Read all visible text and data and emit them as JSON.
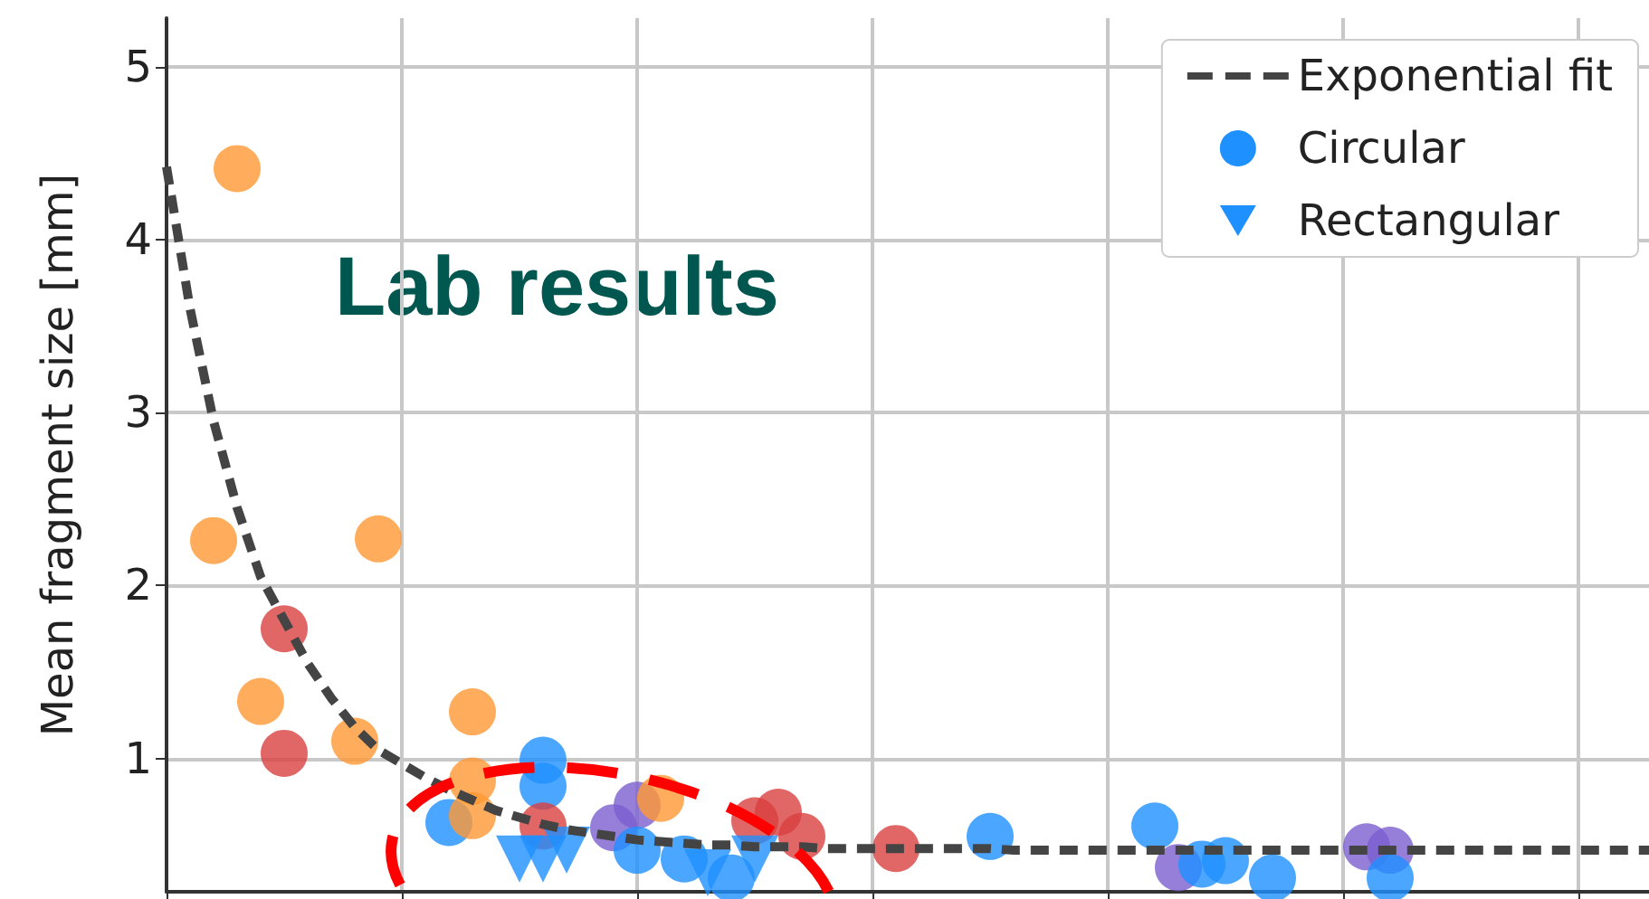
{
  "chart_data": {
    "type": "scatter",
    "ylabel": "Mean fragment size [mm]",
    "annotations": [
      "Lab results"
    ],
    "categories": [
      null,
      null,
      null,
      null,
      null,
      null,
      null,
      null,
      null,
      null,
      null,
      null,
      null,
      null,
      null,
      null,
      null,
      null,
      null,
      null,
      null,
      null,
      null,
      null,
      null,
      null,
      null,
      null,
      null,
      null,
      null,
      null,
      null,
      null,
      null,
      null,
      null,
      null,
      null,
      null,
      null,
      null,
      null,
      null,
      null,
      null,
      null,
      null,
      null,
      null,
      null,
      null,
      null,
      null,
      null,
      null,
      null,
      null,
      null,
      null,
      null,
      null,
      null,
      null
    ],
    "ylim": [
      0.23,
      5.28
    ],
    "yticks": [
      1,
      2,
      3,
      4,
      5
    ],
    "tick_labels": "y",
    "grid": true,
    "legend": "top right",
    "series": [
      {
        "name": "Exponential fit",
        "type": "line",
        "line_style": "dashed",
        "marker": "none",
        "color": "#444444",
        "values": [
          4.42,
          3.6,
          2.95,
          2.45,
          2.05,
          1.8,
          1.55,
          1.35,
          1.18,
          1.05,
          0.97,
          0.89,
          0.82,
          0.76,
          0.7,
          0.66,
          0.62,
          0.59,
          0.57,
          0.55,
          0.53,
          0.52,
          0.51,
          0.5,
          0.5,
          0.49,
          0.49,
          0.49,
          0.48,
          0.48,
          0.48,
          0.48,
          0.48,
          0.48,
          0.48,
          0.48,
          0.47,
          0.47,
          0.47,
          0.47,
          0.47,
          0.47,
          0.47,
          0.47,
          0.47,
          0.47,
          0.47,
          0.47,
          0.47,
          0.47,
          0.47,
          0.47,
          0.47,
          0.47,
          0.47,
          0.47,
          0.47,
          0.47,
          0.47,
          0.47,
          0.47,
          0.47,
          0.47,
          0.47
        ]
      },
      {
        "name": "Circular",
        "marker": "circle",
        "values": [
          null,
          null,
          2.26,
          4.41,
          1.33,
          1.75,
          null,
          null,
          1.1,
          2.27,
          null,
          null,
          0.63,
          1.27,
          null,
          null,
          0.99,
          null,
          null,
          0.6,
          0.73,
          0.77,
          0.42,
          null,
          0.31,
          0.64,
          0.69,
          0.55,
          null,
          null,
          null,
          0.48,
          null,
          null,
          null,
          0.55,
          null,
          null,
          null,
          null,
          null,
          null,
          0.61,
          0.37,
          0.39,
          0.41,
          null,
          0.31,
          null,
          null,
          null,
          0.49,
          0.47,
          null,
          null,
          null,
          null,
          null,
          null,
          null,
          null,
          null,
          null,
          null
        ],
        "colors": [
          null,
          null,
          "#ff9933",
          "#ff9933",
          "#ff9933",
          "#d94040",
          null,
          null,
          "#ff9933",
          "#ff9933",
          null,
          null,
          "#1e90ff",
          "#ff9933",
          null,
          null,
          "#1e90ff",
          null,
          null,
          "#7b5fd0",
          "#7b5fd0",
          "#ff9933",
          "#1e90ff",
          null,
          "#1e90ff",
          "#d94040",
          "#d94040",
          "#d94040",
          null,
          null,
          null,
          "#d94040",
          null,
          null,
          null,
          "#1e90ff",
          null,
          null,
          null,
          null,
          null,
          null,
          "#1e90ff",
          "#7b5fd0",
          "#1e90ff",
          "#1e90ff",
          null,
          "#1e90ff",
          null,
          null,
          null,
          "#7b5fd0",
          "#7b5fd0",
          null,
          null,
          null,
          null,
          null,
          null,
          null,
          null,
          null,
          null,
          null
        ]
      },
      {
        "marker": "circle",
        "values": [
          null,
          null,
          null,
          null,
          null,
          1.03,
          null,
          null,
          null,
          null,
          null,
          null,
          null,
          0.87,
          null,
          null,
          0.84,
          null,
          null,
          null,
          0.47,
          null,
          null,
          null,
          null,
          null,
          null,
          null,
          null,
          null,
          null,
          null,
          null,
          null,
          null,
          null,
          null,
          null,
          null,
          null,
          null,
          null,
          null,
          null,
          null,
          null,
          null,
          null,
          null,
          null,
          null,
          null,
          0.31,
          null,
          null,
          null,
          null,
          null,
          null,
          null,
          null,
          null,
          null,
          null
        ],
        "colors": [
          null,
          null,
          null,
          null,
          null,
          "#d94040",
          null,
          null,
          null,
          null,
          null,
          null,
          null,
          "#ff9933",
          null,
          null,
          "#1e90ff",
          null,
          null,
          null,
          "#1e90ff",
          null,
          null,
          null,
          null,
          null,
          null,
          null,
          null,
          null,
          null,
          null,
          null,
          null,
          null,
          null,
          null,
          null,
          null,
          null,
          null,
          null,
          null,
          null,
          null,
          null,
          null,
          null,
          null,
          null,
          null,
          null,
          "#1e90ff",
          null,
          null,
          null,
          null,
          null,
          null,
          null,
          null,
          null,
          null,
          null
        ]
      },
      {
        "marker": "circle",
        "values": [
          null,
          null,
          null,
          null,
          null,
          null,
          null,
          null,
          null,
          null,
          null,
          null,
          null,
          0.67,
          null,
          null,
          0.61,
          null,
          null,
          null,
          null,
          null,
          null,
          null,
          null,
          null,
          null,
          null,
          null,
          null,
          null,
          null,
          null,
          null,
          null,
          null,
          null,
          null,
          null,
          null,
          null,
          null,
          null,
          null,
          null,
          null,
          null,
          null,
          null,
          null,
          null,
          null,
          null,
          null,
          null,
          null,
          null,
          null,
          null,
          null,
          null,
          null,
          null,
          null
        ],
        "colors": [
          null,
          null,
          null,
          null,
          null,
          null,
          null,
          null,
          null,
          null,
          null,
          null,
          null,
          "#ff9933",
          null,
          null,
          "#d94040",
          null,
          null,
          null,
          null,
          null,
          null,
          null,
          null,
          null,
          null,
          null,
          null,
          null,
          null,
          null,
          null,
          null,
          null,
          null,
          null,
          null,
          null,
          null,
          null,
          null,
          null,
          null,
          null,
          null,
          null,
          null,
          null,
          null,
          null,
          null,
          null,
          null,
          null,
          null,
          null,
          null,
          null,
          null,
          null,
          null,
          null,
          null
        ]
      },
      {
        "name": "Rectangular",
        "marker": "triangle",
        "values": [
          null,
          null,
          null,
          null,
          null,
          null,
          null,
          null,
          null,
          null,
          null,
          null,
          null,
          null,
          null,
          0.42,
          0.42,
          0.47,
          null,
          null,
          null,
          null,
          null,
          0.34,
          null,
          0.42,
          null,
          null,
          null,
          null,
          null,
          null,
          null,
          null,
          null,
          null,
          null,
          null,
          null,
          null,
          null,
          null,
          null,
          null,
          null,
          null,
          null,
          null,
          null,
          null,
          null,
          null,
          null,
          null,
          null,
          null,
          null,
          null,
          null,
          null,
          null,
          null,
          null,
          null
        ],
        "color": "#1e90ff"
      }
    ]
  }
}
